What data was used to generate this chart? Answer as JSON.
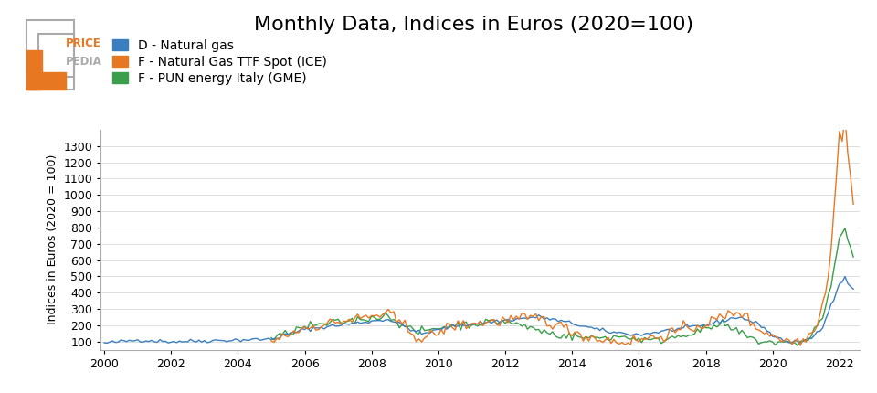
{
  "title": "Monthly Data, Indices in Euros (2020=100)",
  "ylabel": "Indices in Euros (2020 = 100)",
  "colors": {
    "natural_gas_de": "#3a7ebf",
    "ttf_spot": "#e87722",
    "pun_italy": "#3a9e4a"
  },
  "legend_labels": [
    "D - Natural gas",
    "F - Natural Gas TTF Spot (ICE)",
    "F - PUN energy Italy (GME)"
  ],
  "yticks": [
    100,
    200,
    300,
    400,
    500,
    600,
    700,
    800,
    900,
    1000,
    1100,
    1200,
    1300
  ],
  "xticks": [
    2000,
    2002,
    2004,
    2006,
    2008,
    2010,
    2012,
    2014,
    2016,
    2018,
    2020,
    2022
  ],
  "xlim_start": 1999.9,
  "xlim_end": 2022.6,
  "ylim": [
    50,
    1400
  ],
  "background_color": "#ffffff",
  "title_fontsize": 16,
  "tick_fontsize": 9,
  "ylabel_fontsize": 9,
  "legend_fontsize": 10
}
